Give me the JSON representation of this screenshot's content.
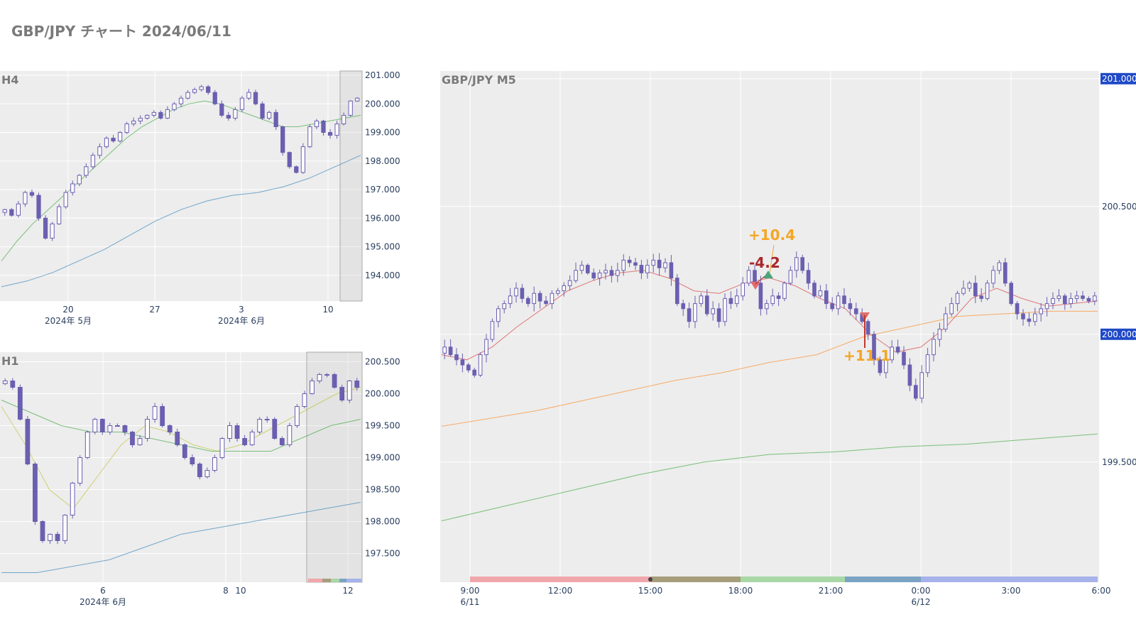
{
  "title": "GBP/JPY チャート 2024/06/11",
  "chart_data": [
    {
      "id": "h4",
      "type": "candlestick",
      "title": "H4",
      "ylim": [
        193.1,
        201.15
      ],
      "y_ticks": [
        194,
        195,
        196,
        197,
        198,
        199,
        200,
        201
      ],
      "y_tick_labels": [
        "194.000",
        "195.000",
        "196.000",
        "197.000",
        "198.000",
        "199.000",
        "200.000",
        "201.000"
      ],
      "x_ticks": [
        {
          "label": "20",
          "sub": "2024年 5月"
        },
        {
          "label": "27",
          "sub": ""
        },
        {
          "label": "3",
          "sub": "2024年 6月"
        },
        {
          "label": "10",
          "sub": ""
        }
      ],
      "closes": [
        196.3,
        196.1,
        196.5,
        196.9,
        196.8,
        196.0,
        195.3,
        195.8,
        196.4,
        196.9,
        197.2,
        197.5,
        197.8,
        198.2,
        198.5,
        198.8,
        198.7,
        199.0,
        199.3,
        199.4,
        199.5,
        199.6,
        199.7,
        199.5,
        199.8,
        200.0,
        200.2,
        200.4,
        200.5,
        200.6,
        200.4,
        200.0,
        199.6,
        199.5,
        199.8,
        200.2,
        200.4,
        200.0,
        199.5,
        199.7,
        199.2,
        198.3,
        197.8,
        197.6,
        198.5,
        199.2,
        199.4,
        199.0,
        198.9,
        199.3,
        199.6,
        200.1,
        200.2
      ],
      "series": [
        {
          "name": "",
          "color": "#2ca02c",
          "values": [
            194.5,
            195.2,
            195.8,
            196.3,
            196.8,
            197.3,
            197.8,
            198.3,
            198.8,
            199.2,
            199.5,
            199.8,
            200.0,
            200.1,
            200.0,
            199.8,
            199.6,
            199.4,
            199.2,
            199.2,
            199.3,
            199.4,
            199.5,
            199.6
          ]
        },
        {
          "name": "",
          "color": "#1f77b4",
          "values": [
            193.6,
            193.8,
            194.1,
            194.5,
            194.9,
            195.4,
            195.9,
            196.3,
            196.6,
            196.8,
            196.9,
            197.1,
            197.4,
            197.8,
            198.2
          ]
        }
      ]
    },
    {
      "id": "h1",
      "type": "candlestick",
      "title": "H1",
      "ylim": [
        197.05,
        200.65
      ],
      "y_ticks": [
        197.5,
        198.0,
        198.5,
        199.0,
        199.5,
        200.0,
        200.5
      ],
      "y_tick_labels": [
        "197.500",
        "198.000",
        "198.500",
        "199.000",
        "199.500",
        "200.000",
        "200.500"
      ],
      "x_ticks": [
        {
          "label": "6",
          "sub": "2024年 6月"
        },
        {
          "label": "8",
          "sub": ""
        },
        {
          "label": "10",
          "sub": ""
        },
        {
          "label": "12",
          "sub": ""
        }
      ],
      "closes": [
        200.2,
        200.1,
        199.6,
        198.9,
        198.0,
        197.7,
        197.8,
        197.7,
        198.1,
        198.6,
        199.0,
        199.4,
        199.6,
        199.4,
        199.5,
        199.5,
        199.4,
        199.2,
        199.3,
        199.6,
        199.8,
        199.5,
        199.4,
        199.2,
        199.0,
        198.9,
        198.7,
        198.8,
        199.0,
        199.3,
        199.5,
        199.3,
        199.2,
        199.4,
        199.6,
        199.6,
        199.3,
        199.2,
        199.5,
        199.8,
        200.0,
        200.2,
        200.3,
        200.3,
        200.1,
        199.9,
        200.2,
        200.1
      ],
      "series": [
        {
          "name": "",
          "color": "#bcbd22",
          "values": [
            199.8,
            199.2,
            198.5,
            198.2,
            198.7,
            199.2,
            199.5,
            199.4,
            199.2,
            199.1,
            199.2,
            199.4,
            199.6,
            199.8,
            200.0,
            200.1
          ]
        },
        {
          "name": "",
          "color": "#2ca02c",
          "values": [
            199.9,
            199.7,
            199.5,
            199.4,
            199.4,
            199.3,
            199.2,
            199.1,
            199.1,
            199.1,
            199.3,
            199.5,
            199.6
          ]
        },
        {
          "name": "",
          "color": "#1f77b4",
          "values": [
            197.2,
            197.2,
            197.3,
            197.4,
            197.6,
            197.8,
            197.9,
            198.0,
            198.1,
            198.2,
            198.3
          ]
        }
      ]
    },
    {
      "id": "m5",
      "type": "candlestick",
      "title": "GBP/JPY M5",
      "ylim": [
        199.03,
        201.03
      ],
      "y_ticks": [
        199.5,
        200.0,
        200.5,
        201.0
      ],
      "y_tick_labels": [
        "199.500",
        "200.000",
        "200.500",
        "201.000"
      ],
      "highlight_ticks": [
        "200.000",
        "201.000"
      ],
      "x_ticks": [
        {
          "label": "9:00",
          "sub": "6/11"
        },
        {
          "label": "12:00",
          "sub": ""
        },
        {
          "label": "15:00",
          "sub": ""
        },
        {
          "label": "18:00",
          "sub": ""
        },
        {
          "label": "21:00",
          "sub": ""
        },
        {
          "label": "0:00",
          "sub": "6/12"
        },
        {
          "label": "3:00",
          "sub": ""
        },
        {
          "label": "6:00",
          "sub": ""
        }
      ],
      "closes": [
        199.95,
        199.92,
        199.9,
        199.88,
        199.86,
        199.84,
        199.92,
        199.98,
        200.05,
        200.1,
        200.12,
        200.15,
        200.18,
        200.14,
        200.12,
        200.16,
        200.13,
        200.12,
        200.16,
        200.17,
        200.19,
        200.21,
        200.25,
        200.27,
        200.24,
        200.22,
        200.24,
        200.25,
        200.23,
        200.25,
        200.29,
        200.28,
        200.27,
        200.24,
        200.27,
        200.29,
        200.26,
        200.28,
        200.22,
        200.12,
        200.1,
        200.05,
        200.12,
        200.15,
        200.08,
        200.1,
        200.05,
        200.14,
        200.12,
        200.15,
        200.2,
        200.25,
        200.2,
        200.1,
        200.12,
        200.15,
        200.14,
        200.2,
        200.25,
        200.3,
        200.25,
        200.2,
        200.15,
        200.17,
        200.12,
        200.1,
        200.15,
        200.12,
        200.1,
        200.08,
        200.05,
        200.0,
        199.9,
        199.85,
        199.9,
        199.95,
        199.93,
        199.88,
        199.8,
        199.75,
        199.85,
        199.92,
        199.98,
        200.02,
        200.08,
        200.12,
        200.16,
        200.18,
        200.2,
        200.15,
        200.14,
        200.2,
        200.25,
        200.28,
        200.2,
        200.12,
        200.08,
        200.06,
        200.05,
        200.08,
        200.1,
        200.12,
        200.14,
        200.15,
        200.12,
        200.14,
        200.15,
        200.14,
        200.13,
        200.15
      ],
      "series": [
        {
          "name": "",
          "color": "#d62728",
          "values": [
            199.92,
            199.9,
            199.95,
            200.03,
            200.1,
            200.17,
            200.21,
            200.24,
            200.25,
            200.22,
            200.17,
            200.16,
            200.2,
            200.22,
            200.19,
            200.14,
            200.1,
            200.0,
            199.93,
            199.95,
            200.03,
            200.14,
            200.18,
            200.14,
            200.11,
            200.12,
            200.13
          ]
        },
        {
          "name": "",
          "color": "#ff7f0e",
          "values": [
            199.64,
            199.67,
            199.7,
            199.74,
            199.78,
            199.82,
            199.85,
            199.89,
            199.92,
            199.99,
            200.03,
            200.07,
            200.08,
            200.09,
            200.09
          ]
        },
        {
          "name": "",
          "color": "#2ca02c",
          "values": [
            199.27,
            199.33,
            199.39,
            199.45,
            199.5,
            199.53,
            199.54,
            199.56,
            199.57,
            199.59,
            199.61
          ]
        }
      ],
      "trades": [
        {
          "label": "+10.4",
          "color": "#f5a623"
        },
        {
          "label": "-4.2",
          "color": "#a8272c"
        },
        {
          "label": "+11.1",
          "color": "#f5a623"
        }
      ],
      "session_colors": [
        "#f0a7ab",
        "#a69d7b",
        "#a9d8a6",
        "#7aa3c4",
        "#a6b2ea"
      ]
    }
  ]
}
